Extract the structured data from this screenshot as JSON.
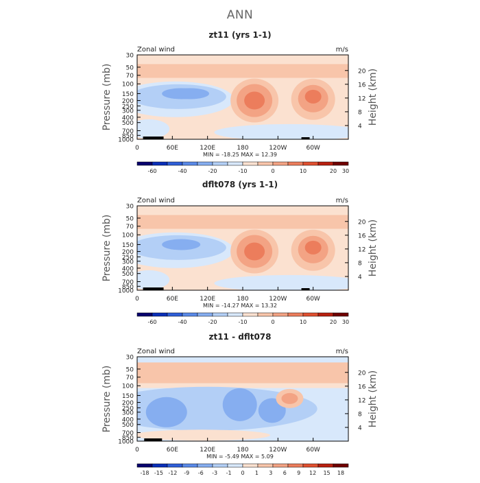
{
  "page_title": "ANN",
  "colors": {
    "zonal_wind_levels": [
      "#08006e",
      "#0a2fb8",
      "#2f5fd8",
      "#5a8ae8",
      "#86aef0",
      "#b3cff6",
      "#d8e8fb",
      "#fbe1d0",
      "#f8c5aa",
      "#f3a384",
      "#ec7d5c",
      "#e05030",
      "#b82010",
      "#700000"
    ],
    "difference_levels": [
      "#08006e",
      "#0a2fb8",
      "#2f5fd8",
      "#5a8ae8",
      "#86aef0",
      "#b3cff6",
      "#d8e8fb",
      "#fbe1d0",
      "#f8c5aa",
      "#f3a384",
      "#ec7d5c",
      "#e05030",
      "#b82010",
      "#700000"
    ]
  },
  "chart_data": [
    {
      "type": "heatmap",
      "title": "zt11 (yrs 1-1)",
      "corner_left": "Zonal wind",
      "corner_right": "m/s",
      "ylabel": "Pressure (mb)",
      "ylabel_right": "Height (km)",
      "x_ticks": [
        "0",
        "60E",
        "120E",
        "180",
        "120W",
        "60W"
      ],
      "y_ticks": [
        "30",
        "50",
        "70",
        "100",
        "150",
        "200",
        "250",
        "300",
        "400",
        "500",
        "700",
        "850",
        "1000"
      ],
      "y_right_ticks": [
        "20",
        "16",
        "12",
        "8",
        "4"
      ],
      "stats": "MIN = -18.25   MAX =  12.39",
      "colorbar_labels": [
        "-60",
        "-40",
        "-20",
        "-10",
        "0",
        "10",
        "20",
        "30"
      ],
      "min": -18.25,
      "max": 12.39
    },
    {
      "type": "heatmap",
      "title": "dflt078 (yrs 1-1)",
      "corner_left": "Zonal wind",
      "corner_right": "m/s",
      "ylabel": "Pressure (mb)",
      "ylabel_right": "Height (km)",
      "x_ticks": [
        "0",
        "60E",
        "120E",
        "180",
        "120W",
        "60W"
      ],
      "y_ticks": [
        "30",
        "50",
        "70",
        "100",
        "150",
        "200",
        "250",
        "300",
        "400",
        "500",
        "700",
        "850",
        "1000"
      ],
      "y_right_ticks": [
        "20",
        "16",
        "12",
        "8",
        "4"
      ],
      "stats": "MIN = -14.27   MAX =  13.32",
      "colorbar_labels": [
        "-60",
        "-40",
        "-20",
        "-10",
        "0",
        "10",
        "20",
        "30"
      ],
      "min": -14.27,
      "max": 13.32
    },
    {
      "type": "heatmap",
      "title": "zt11 - dflt078",
      "corner_left": "Zonal wind",
      "corner_right": "m/s",
      "ylabel": "Pressure (mb)",
      "ylabel_right": "Height (km)",
      "x_ticks": [
        "0",
        "60E",
        "120E",
        "180",
        "120W",
        "60W"
      ],
      "y_ticks": [
        "30",
        "50",
        "70",
        "100",
        "150",
        "200",
        "250",
        "300",
        "400",
        "500",
        "700",
        "850",
        "1000"
      ],
      "y_right_ticks": [
        "20",
        "16",
        "12",
        "8",
        "4"
      ],
      "stats": "MIN =  -5.49   MAX =   5.09",
      "colorbar_labels": [
        "-18",
        "-15",
        "-12",
        "-9",
        "-6",
        "-3",
        "-1",
        "0",
        "1",
        "3",
        "6",
        "9",
        "12",
        "15",
        "18"
      ],
      "min": -5.49,
      "max": 5.09
    }
  ]
}
